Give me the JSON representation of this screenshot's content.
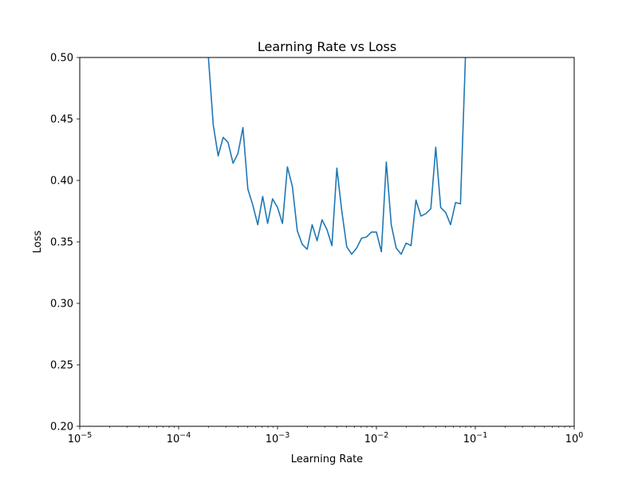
{
  "chart_data": {
    "type": "line",
    "title": "Learning Rate vs Loss",
    "xlabel": "Learning Rate",
    "ylabel": "Loss",
    "xscale": "log",
    "xlim": [
      1e-05,
      1
    ],
    "ylim": [
      0.2,
      0.5
    ],
    "grid": false,
    "legend": "none",
    "x_ticks": [
      {
        "value": 1e-05,
        "base": "10",
        "exp": "−5"
      },
      {
        "value": 0.0001,
        "base": "10",
        "exp": "−4"
      },
      {
        "value": 0.001,
        "base": "10",
        "exp": "−3"
      },
      {
        "value": 0.01,
        "base": "10",
        "exp": "−2"
      },
      {
        "value": 0.1,
        "base": "10",
        "exp": "−1"
      },
      {
        "value": 1,
        "base": "10",
        "exp": "0"
      }
    ],
    "y_ticks": [
      {
        "value": 0.2,
        "label": "0.20"
      },
      {
        "value": 0.25,
        "label": "0.25"
      },
      {
        "value": 0.3,
        "label": "0.30"
      },
      {
        "value": 0.35,
        "label": "0.35"
      },
      {
        "value": 0.4,
        "label": "0.40"
      },
      {
        "value": 0.45,
        "label": "0.45"
      },
      {
        "value": 0.5,
        "label": "0.50"
      }
    ],
    "series": [
      {
        "color": "#1f77b4",
        "x": [
          0.000178,
          0.0002,
          0.000224,
          0.000251,
          0.000282,
          0.000316,
          0.000355,
          0.000398,
          0.000447,
          0.000501,
          0.000562,
          0.000631,
          0.000708,
          0.000794,
          0.000891,
          0.001,
          0.001122,
          0.001259,
          0.001413,
          0.001585,
          0.001778,
          0.001995,
          0.002239,
          0.002512,
          0.002818,
          0.003162,
          0.003548,
          0.003981,
          0.004467,
          0.005012,
          0.005623,
          0.00631,
          0.007079,
          0.007943,
          0.008913,
          0.01,
          0.01122,
          0.012589,
          0.014125,
          0.015849,
          0.017783,
          0.019953,
          0.022387,
          0.025119,
          0.028184,
          0.031623,
          0.035481,
          0.039811,
          0.044668,
          0.050119,
          0.056234,
          0.063096,
          0.070795,
          0.079433,
          0.089125
        ],
        "y": [
          0.65,
          0.5,
          0.445,
          0.42,
          0.435,
          0.431,
          0.414,
          0.422,
          0.443,
          0.393,
          0.38,
          0.364,
          0.387,
          0.365,
          0.385,
          0.378,
          0.365,
          0.411,
          0.395,
          0.359,
          0.348,
          0.344,
          0.364,
          0.351,
          0.368,
          0.36,
          0.347,
          0.41,
          0.375,
          0.346,
          0.34,
          0.345,
          0.353,
          0.354,
          0.358,
          0.358,
          0.342,
          0.415,
          0.364,
          0.345,
          0.34,
          0.349,
          0.347,
          0.384,
          0.371,
          0.373,
          0.377,
          0.427,
          0.378,
          0.374,
          0.364,
          0.382,
          0.381,
          0.5,
          0.65
        ]
      }
    ]
  }
}
